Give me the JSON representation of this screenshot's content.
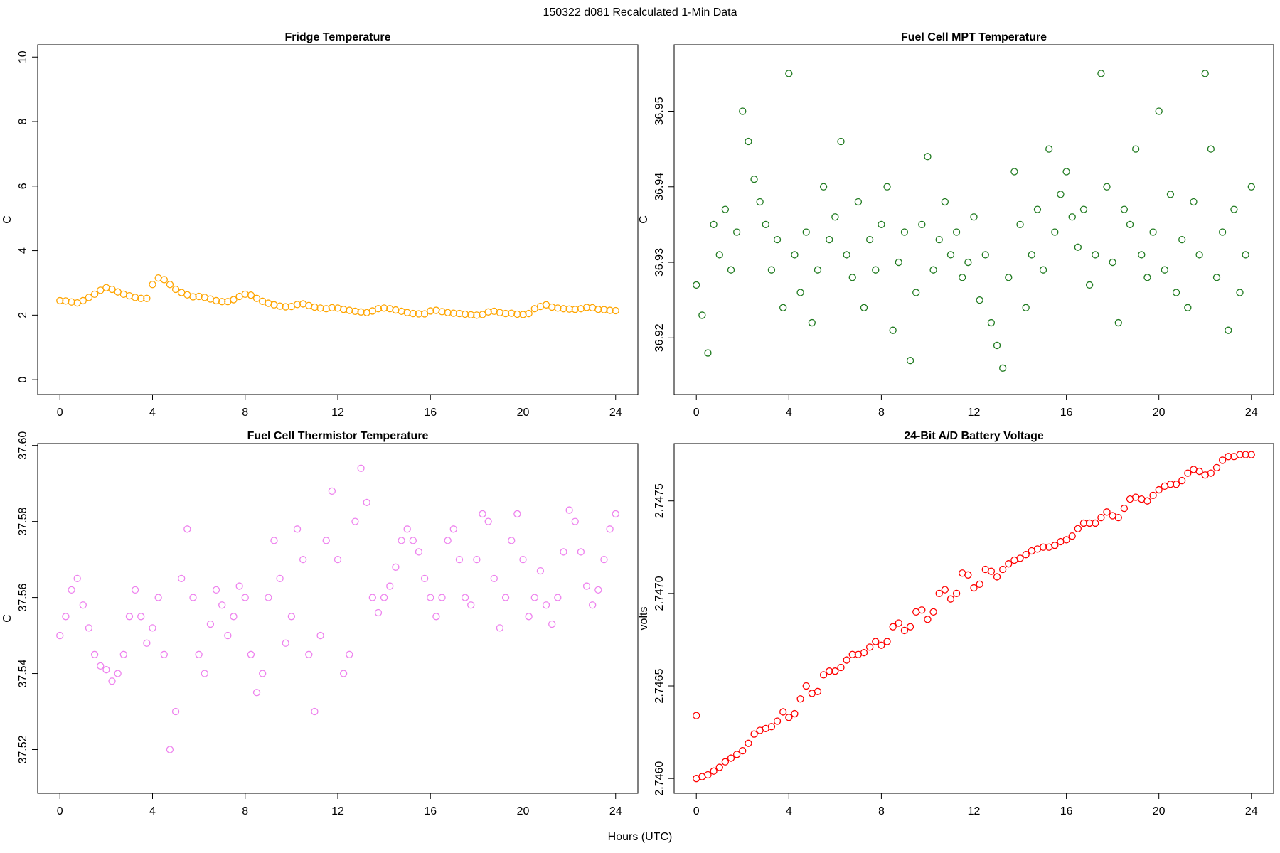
{
  "title": "150322   d081   Recalculated 1-Min Data",
  "xlabel": "Hours (UTC)",
  "chart_data": [
    {
      "type": "scatter",
      "title": "Fridge Temperature",
      "ylabel": "C",
      "color": "#ffa500",
      "xlim": [
        -0.96,
        24.96
      ],
      "xticks": [
        0,
        4,
        8,
        12,
        16,
        20,
        24
      ],
      "ylim": [
        -0.46,
        10.38
      ],
      "yticks": [
        0,
        2,
        4,
        6,
        8,
        10
      ],
      "x": [
        0,
        0.25,
        0.5,
        0.75,
        1,
        1.25,
        1.5,
        1.75,
        2,
        2.25,
        2.5,
        2.75,
        3,
        3.25,
        3.5,
        3.75,
        4,
        4.25,
        4.5,
        4.75,
        5,
        5.25,
        5.5,
        5.75,
        6,
        6.25,
        6.5,
        6.75,
        7,
        7.25,
        7.5,
        7.75,
        8,
        8.25,
        8.5,
        8.75,
        9,
        9.25,
        9.5,
        9.75,
        10,
        10.25,
        10.5,
        10.75,
        11,
        11.25,
        11.5,
        11.75,
        12,
        12.25,
        12.5,
        12.75,
        13,
        13.25,
        13.5,
        13.75,
        14,
        14.25,
        14.5,
        14.75,
        15,
        15.25,
        15.5,
        15.75,
        16,
        16.25,
        16.5,
        16.75,
        17,
        17.25,
        17.5,
        17.75,
        18,
        18.25,
        18.5,
        18.75,
        19,
        19.25,
        19.5,
        19.75,
        20,
        20.25,
        20.5,
        20.75,
        21,
        21.25,
        21.5,
        21.75,
        22,
        22.25,
        22.5,
        22.75,
        23,
        23.25,
        23.5,
        23.75,
        24
      ],
      "values": [
        2.45,
        2.44,
        2.41,
        2.38,
        2.45,
        2.55,
        2.65,
        2.77,
        2.85,
        2.8,
        2.72,
        2.65,
        2.6,
        2.55,
        2.52,
        2.52,
        2.95,
        3.15,
        3.1,
        2.95,
        2.8,
        2.7,
        2.63,
        2.57,
        2.58,
        2.55,
        2.5,
        2.45,
        2.42,
        2.42,
        2.48,
        2.58,
        2.65,
        2.62,
        2.52,
        2.43,
        2.37,
        2.32,
        2.28,
        2.26,
        2.27,
        2.33,
        2.35,
        2.3,
        2.25,
        2.22,
        2.2,
        2.23,
        2.22,
        2.18,
        2.15,
        2.12,
        2.1,
        2.08,
        2.13,
        2.2,
        2.22,
        2.2,
        2.16,
        2.12,
        2.08,
        2.05,
        2.04,
        2.04,
        2.13,
        2.15,
        2.11,
        2.08,
        2.06,
        2.05,
        2.03,
        2.01,
        2.0,
        2.02,
        2.1,
        2.12,
        2.08,
        2.05,
        2.06,
        2.03,
        2.02,
        2.05,
        2.2,
        2.27,
        2.32,
        2.25,
        2.22,
        2.2,
        2.19,
        2.18,
        2.2,
        2.24,
        2.23,
        2.18,
        2.17,
        2.15,
        2.14
      ]
    },
    {
      "type": "scatter",
      "title": "Fuel Cell MPT Temperature",
      "ylabel": "C",
      "color": "#1f7a1f",
      "xlim": [
        -0.96,
        24.96
      ],
      "xticks": [
        0,
        4,
        8,
        12,
        16,
        20,
        24
      ],
      "ylim": [
        36.9125,
        36.9588
      ],
      "yticks": [
        36.92,
        36.93,
        36.94,
        36.95
      ],
      "x": [
        0,
        0.25,
        0.5,
        0.75,
        1,
        1.25,
        1.5,
        1.75,
        2,
        2.25,
        2.5,
        2.75,
        3,
        3.25,
        3.5,
        3.75,
        4,
        4.25,
        4.5,
        4.75,
        5,
        5.25,
        5.5,
        5.75,
        6,
        6.25,
        6.5,
        6.75,
        7,
        7.25,
        7.5,
        7.75,
        8,
        8.25,
        8.5,
        8.75,
        9,
        9.25,
        9.5,
        9.75,
        10,
        10.25,
        10.5,
        10.75,
        11,
        11.25,
        11.5,
        11.75,
        12,
        12.25,
        12.5,
        12.75,
        13,
        13.25,
        13.5,
        13.75,
        14,
        14.25,
        14.5,
        14.75,
        15,
        15.25,
        15.5,
        15.75,
        16,
        16.25,
        16.5,
        16.75,
        17,
        17.25,
        17.5,
        17.75,
        18,
        18.25,
        18.5,
        18.75,
        19,
        19.25,
        19.5,
        19.75,
        20,
        20.25,
        20.5,
        20.75,
        21,
        21.25,
        21.5,
        21.75,
        22,
        22.25,
        22.5,
        22.75,
        23,
        23.25,
        23.5,
        23.75,
        24
      ],
      "values": [
        36.927,
        36.923,
        36.918,
        36.935,
        36.931,
        36.937,
        36.929,
        36.934,
        36.95,
        36.946,
        36.941,
        36.938,
        36.935,
        36.929,
        36.933,
        36.924,
        36.955,
        36.931,
        36.926,
        36.934,
        36.922,
        36.929,
        36.94,
        36.933,
        36.936,
        36.946,
        36.931,
        36.928,
        36.938,
        36.924,
        36.933,
        36.929,
        36.935,
        36.94,
        36.921,
        36.93,
        36.934,
        36.917,
        36.926,
        36.935,
        36.944,
        36.929,
        36.933,
        36.938,
        36.931,
        36.934,
        36.928,
        36.93,
        36.936,
        36.925,
        36.931,
        36.922,
        36.919,
        36.916,
        36.928,
        36.942,
        36.935,
        36.924,
        36.931,
        36.937,
        36.929,
        36.945,
        36.934,
        36.939,
        36.942,
        36.936,
        36.932,
        36.937,
        36.927,
        36.931,
        36.955,
        36.94,
        36.93,
        36.922,
        36.937,
        36.935,
        36.945,
        36.931,
        36.928,
        36.934,
        36.95,
        36.929,
        36.939,
        36.926,
        36.933,
        36.924,
        36.938,
        36.931,
        36.955,
        36.945,
        36.928,
        36.934,
        36.921,
        36.937,
        36.926,
        36.931,
        36.94
      ]
    },
    {
      "type": "scatter",
      "title": "Fuel Cell Thermistor Temperature",
      "ylabel": "C",
      "color": "#ee82ee",
      "xlim": [
        -0.96,
        24.96
      ],
      "xticks": [
        0,
        4,
        8,
        12,
        16,
        20,
        24
      ],
      "ylim": [
        37.5085,
        37.6005
      ],
      "yticks": [
        37.52,
        37.54,
        37.56,
        37.58,
        {
          "value": 37.6,
          "label": "37.60"
        }
      ],
      "x": [
        0,
        0.25,
        0.5,
        0.75,
        1,
        1.25,
        1.5,
        1.75,
        2,
        2.25,
        2.5,
        2.75,
        3,
        3.25,
        3.5,
        3.75,
        4,
        4.25,
        4.5,
        4.75,
        5,
        5.25,
        5.5,
        5.75,
        6,
        6.25,
        6.5,
        6.75,
        7,
        7.25,
        7.5,
        7.75,
        8,
        8.25,
        8.5,
        8.75,
        9,
        9.25,
        9.5,
        9.75,
        10,
        10.25,
        10.5,
        10.75,
        11,
        11.25,
        11.5,
        11.75,
        12,
        12.25,
        12.5,
        12.75,
        13,
        13.25,
        13.5,
        13.75,
        14,
        14.25,
        14.5,
        14.75,
        15,
        15.25,
        15.5,
        15.75,
        16,
        16.25,
        16.5,
        16.75,
        17,
        17.25,
        17.5,
        17.75,
        18,
        18.25,
        18.5,
        18.75,
        19,
        19.25,
        19.5,
        19.75,
        20,
        20.25,
        20.5,
        20.75,
        21,
        21.25,
        21.5,
        21.75,
        22,
        22.25,
        22.5,
        22.75,
        23,
        23.25,
        23.5,
        23.75,
        24
      ],
      "values": [
        37.55,
        37.555,
        37.562,
        37.565,
        37.558,
        37.552,
        37.545,
        37.542,
        37.541,
        37.538,
        37.54,
        37.545,
        37.555,
        37.562,
        37.555,
        37.548,
        37.552,
        37.56,
        37.545,
        37.52,
        37.53,
        37.565,
        37.578,
        37.56,
        37.545,
        37.54,
        37.553,
        37.562,
        37.558,
        37.55,
        37.555,
        37.563,
        37.56,
        37.545,
        37.535,
        37.54,
        37.56,
        37.575,
        37.565,
        37.548,
        37.555,
        37.578,
        37.57,
        37.545,
        37.53,
        37.55,
        37.575,
        37.588,
        37.57,
        37.54,
        37.545,
        37.58,
        37.594,
        37.585,
        37.56,
        37.556,
        37.56,
        37.563,
        37.568,
        37.575,
        37.578,
        37.575,
        37.572,
        37.565,
        37.56,
        37.555,
        37.56,
        37.575,
        37.578,
        37.57,
        37.56,
        37.558,
        37.57,
        37.582,
        37.58,
        37.565,
        37.552,
        37.56,
        37.575,
        37.582,
        37.57,
        37.555,
        37.56,
        37.567,
        37.558,
        37.553,
        37.56,
        37.572,
        37.583,
        37.58,
        37.572,
        37.563,
        37.558,
        37.562,
        37.57,
        37.578,
        37.582
      ]
    },
    {
      "type": "scatter",
      "title": "24-Bit A/D Battery Voltage",
      "ylabel": "volts",
      "color": "#ff0000",
      "xlim": [
        -0.96,
        24.96
      ],
      "xticks": [
        0,
        4,
        8,
        12,
        16,
        20,
        24
      ],
      "ylim": [
        2.74592,
        2.74781
      ],
      "yticks": [
        {
          "value": 2.746,
          "label": "2.7460"
        },
        2.7465,
        {
          "value": 2.747,
          "label": "2.7470"
        },
        2.7475
      ],
      "x": [
        0,
        0,
        0.25,
        0.5,
        0.75,
        1,
        1.25,
        1.5,
        1.75,
        2,
        2.25,
        2.5,
        2.75,
        3,
        3.25,
        3.5,
        3.75,
        4,
        4.25,
        4.5,
        4.75,
        5,
        5.25,
        5.5,
        5.75,
        6,
        6.25,
        6.5,
        6.75,
        7,
        7.25,
        7.5,
        7.75,
        8,
        8.25,
        8.5,
        8.75,
        9,
        9.25,
        9.5,
        9.75,
        10,
        10.25,
        10.5,
        10.75,
        11,
        11.25,
        11.5,
        11.75,
        12,
        12.25,
        12.5,
        12.75,
        13,
        13.25,
        13.5,
        13.75,
        14,
        14.25,
        14.5,
        14.75,
        15,
        15.25,
        15.5,
        15.75,
        16,
        16.25,
        16.5,
        16.75,
        17,
        17.25,
        17.5,
        17.75,
        18,
        18.25,
        18.5,
        18.75,
        19,
        19.25,
        19.5,
        19.75,
        20,
        20.25,
        20.5,
        20.75,
        21,
        21.25,
        21.5,
        21.75,
        22,
        22.25,
        22.5,
        22.75,
        23,
        23.25,
        23.5,
        23.75,
        24
      ],
      "values": [
        2.74634,
        2.746,
        2.74601,
        2.74602,
        2.74604,
        2.74606,
        2.74609,
        2.74611,
        2.74613,
        2.74615,
        2.74619,
        2.74624,
        2.74626,
        2.74627,
        2.74628,
        2.74631,
        2.74636,
        2.74633,
        2.74635,
        2.74643,
        2.7465,
        2.74646,
        2.74647,
        2.74656,
        2.74658,
        2.74658,
        2.7466,
        2.74664,
        2.74667,
        2.74667,
        2.74668,
        2.74671,
        2.74674,
        2.74672,
        2.74674,
        2.74682,
        2.74684,
        2.7468,
        2.74682,
        2.7469,
        2.74691,
        2.74686,
        2.7469,
        2.747,
        2.74702,
        2.74697,
        2.747,
        2.74711,
        2.7471,
        2.74703,
        2.74705,
        2.74713,
        2.74712,
        2.74709,
        2.74713,
        2.74716,
        2.74718,
        2.74719,
        2.74721,
        2.74723,
        2.74724,
        2.74725,
        2.74725,
        2.74726,
        2.74728,
        2.74729,
        2.74731,
        2.74735,
        2.74738,
        2.74738,
        2.74738,
        2.74741,
        2.74744,
        2.74742,
        2.74741,
        2.74746,
        2.74751,
        2.74752,
        2.74751,
        2.7475,
        2.74753,
        2.74756,
        2.74758,
        2.74759,
        2.74759,
        2.74761,
        2.74765,
        2.74767,
        2.74766,
        2.74764,
        2.74765,
        2.74768,
        2.74772,
        2.74774,
        2.74774,
        2.74775,
        2.74775,
        2.74775
      ]
    }
  ]
}
